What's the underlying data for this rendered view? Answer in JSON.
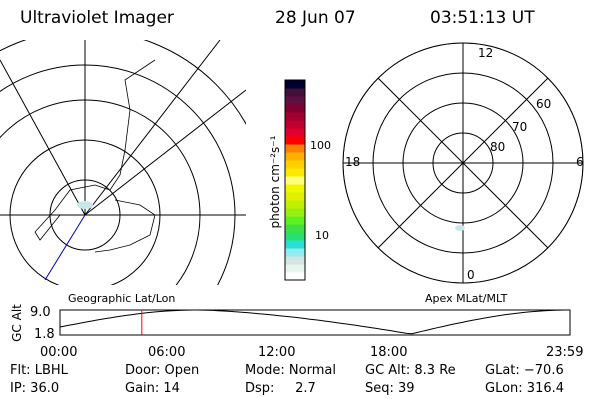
{
  "header": {
    "title": "Ultraviolet Imager",
    "date": "28 Jun 07",
    "time": "03:51:13 UT"
  },
  "colorbar": {
    "label": "photon cm⁻²s⁻¹",
    "ticks": [
      "100",
      "10"
    ],
    "colors": [
      "#ffffff",
      "#e8f4ee",
      "#d4e4e4",
      "#90ecf0",
      "#28e0d8",
      "#28e070",
      "#40e040",
      "#60f020",
      "#98f010",
      "#c0f000",
      "#e0f000",
      "#f0f800",
      "#ffff80",
      "#ffe800",
      "#ffd000",
      "#ffb000",
      "#ff8000",
      "#ff0000",
      "#e00030",
      "#c00030",
      "#a00030",
      "#800030",
      "#601040",
      "#401038",
      "#000030"
    ]
  },
  "left_panel": {
    "caption": "Geographic Lat/Lon"
  },
  "right_panel": {
    "caption": "Apex MLat/MLT",
    "mlt_labels": {
      "top": "12",
      "left": "18",
      "right": "6",
      "bottom": "0"
    },
    "lat_labels": [
      "60",
      "70",
      "80"
    ]
  },
  "altitude_plot": {
    "ylabel": "GC Alt",
    "yticks": [
      "9.0",
      "1.8"
    ],
    "xticks": [
      "00:00",
      "06:00",
      "12:00",
      "18:00",
      "23:59"
    ],
    "marker_time": "03:51",
    "marker_color": "#ff0000"
  },
  "info": {
    "row1": [
      "Flt: LBHL",
      "Door: Open",
      "Mode: Normal",
      "GC Alt: 8.3 Re",
      "GLat: −70.6"
    ],
    "row2": [
      "IP: 36.0",
      "Gain: 14",
      "Dsp:     2.7",
      "Seq: 39",
      "GLon: 316.4"
    ]
  }
}
